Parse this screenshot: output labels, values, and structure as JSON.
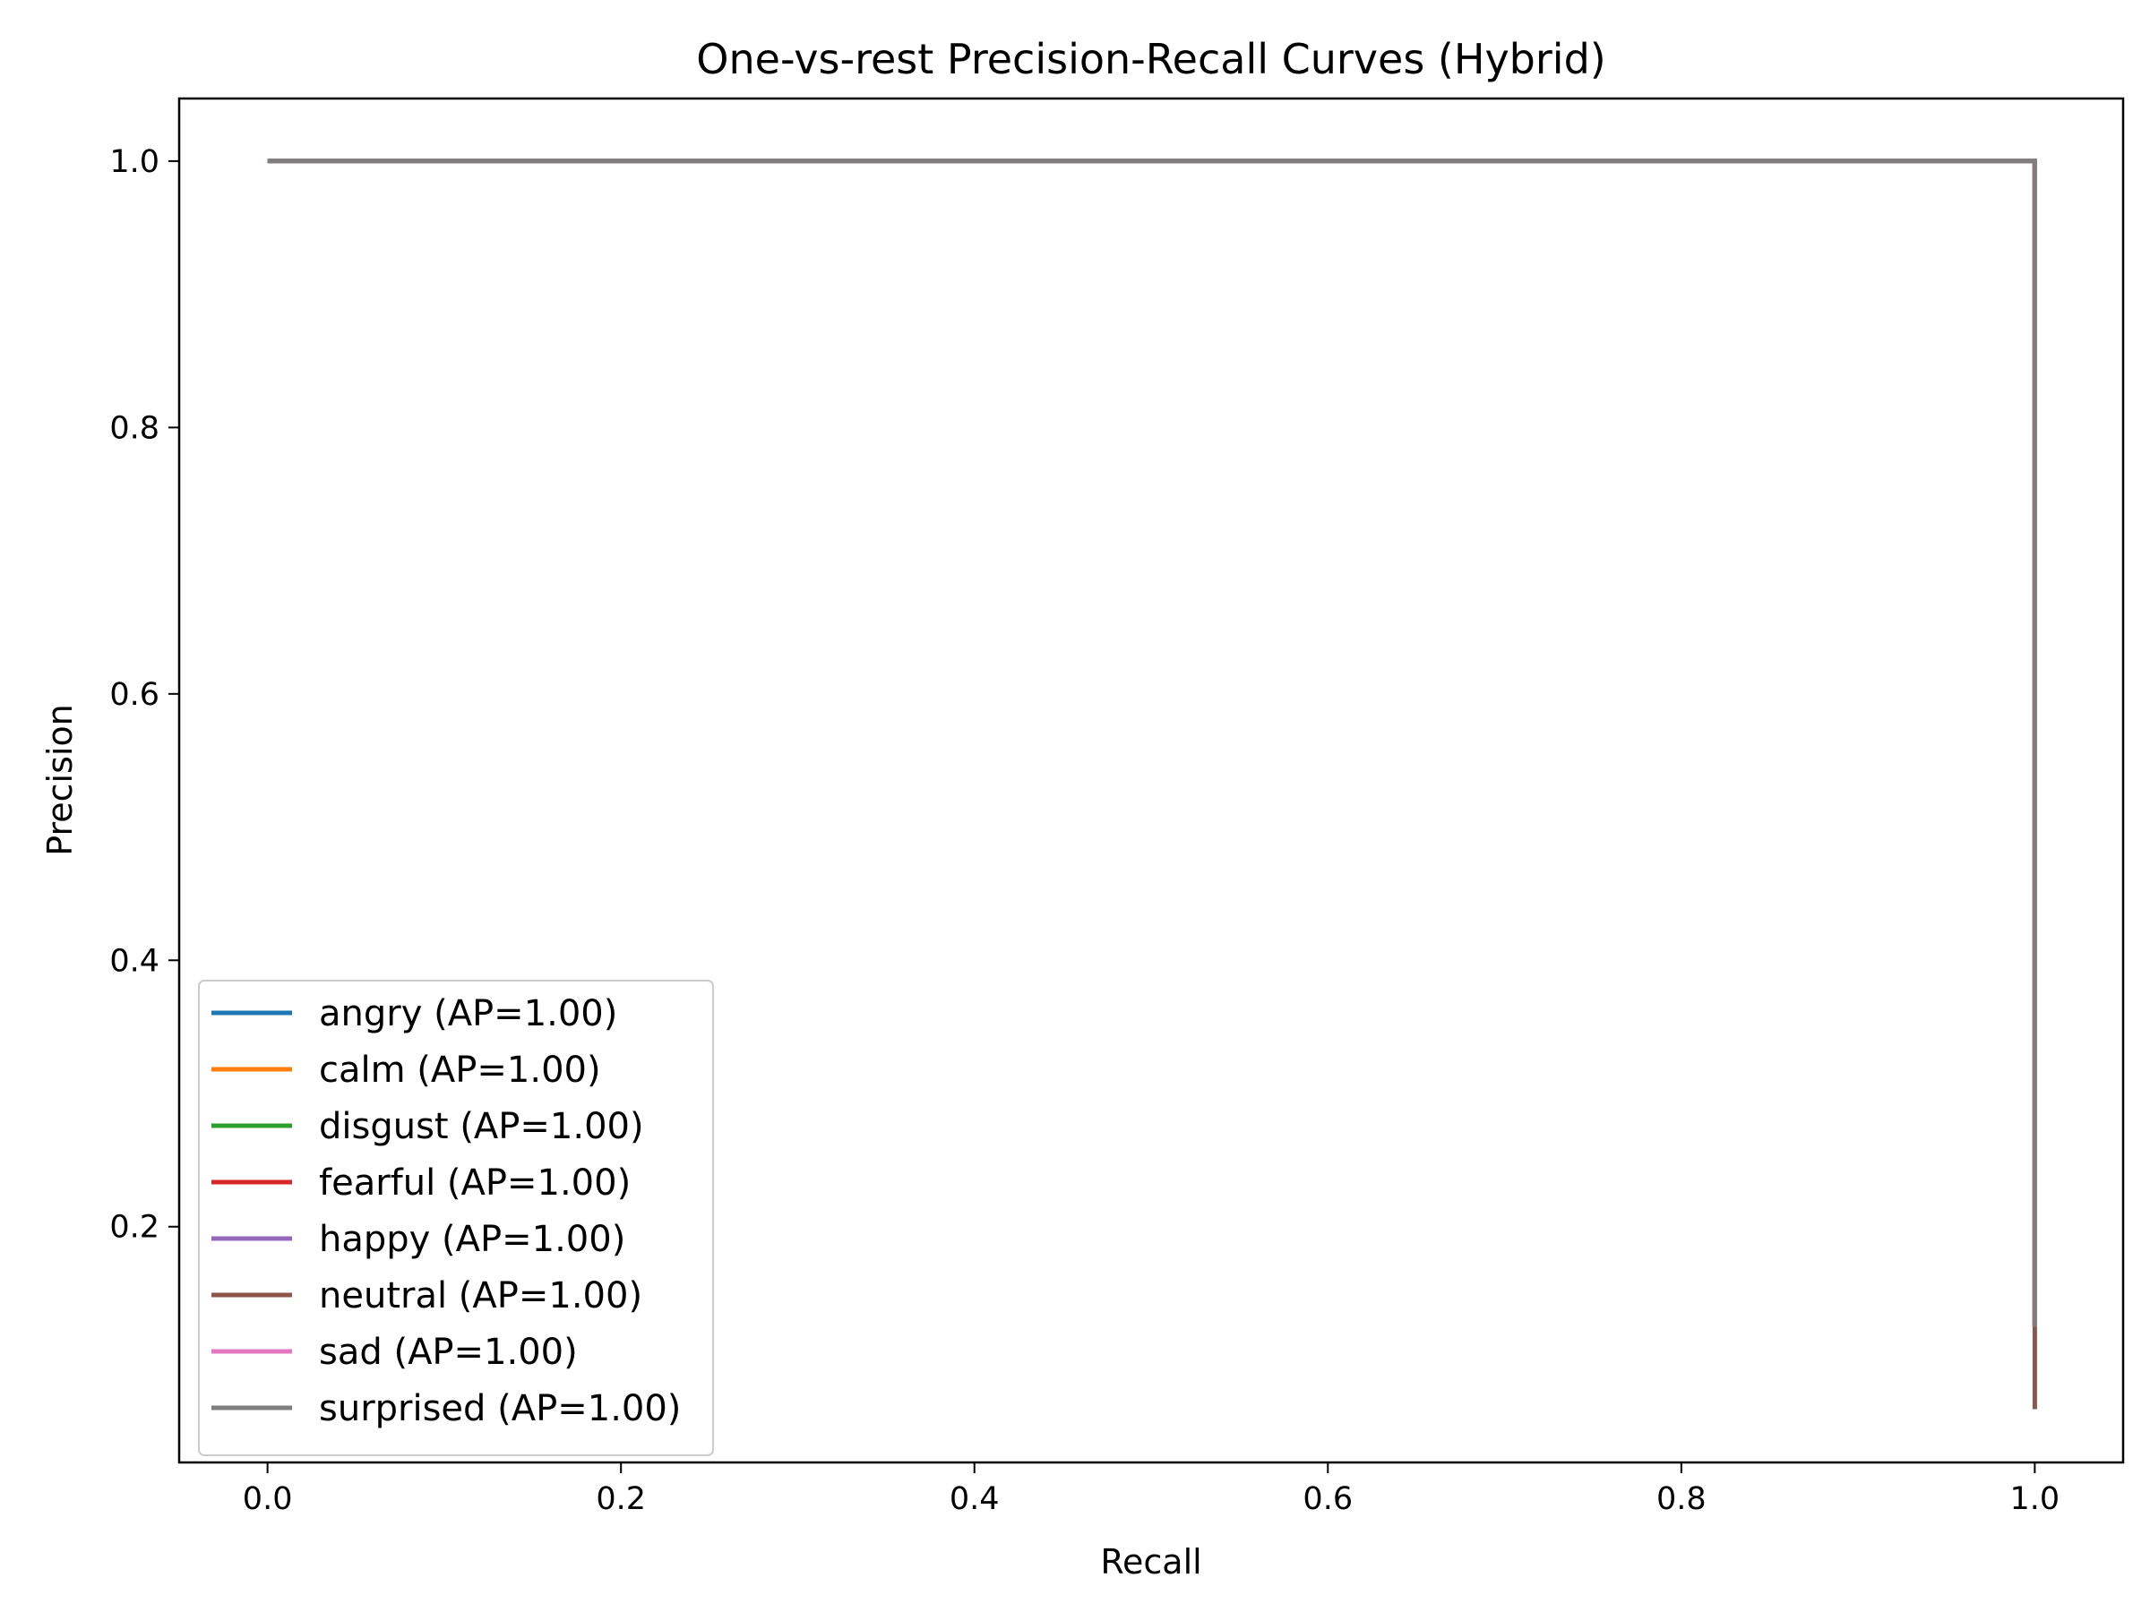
{
  "chart_data": {
    "type": "line",
    "title": "One-vs-rest Precision-Recall Curves (Hybrid)",
    "xlabel": "Recall",
    "ylabel": "Precision",
    "xlim": [
      -0.05,
      1.05
    ],
    "ylim": [
      0.023,
      1.047
    ],
    "xticks": [
      0.0,
      0.2,
      0.4,
      0.6,
      0.8,
      1.0
    ],
    "xtick_labels": [
      "0.0",
      "0.2",
      "0.4",
      "0.6",
      "0.8",
      "1.0"
    ],
    "yticks": [
      0.2,
      0.4,
      0.6,
      0.8,
      1.0
    ],
    "ytick_labels": [
      "0.2",
      "0.4",
      "0.6",
      "0.8",
      "1.0"
    ],
    "grid": false,
    "legend_position": "lower-left",
    "series": [
      {
        "name": "angry (AP=1.00)",
        "color": "#1f77b4",
        "x": [
          0.0,
          1.0,
          1.0
        ],
        "y": [
          1.0,
          1.0,
          0.125
        ]
      },
      {
        "name": "calm (AP=1.00)",
        "color": "#ff7f0e",
        "x": [
          0.0,
          1.0,
          1.0
        ],
        "y": [
          1.0,
          1.0,
          0.125
        ]
      },
      {
        "name": "disgust (AP=1.00)",
        "color": "#2ca02c",
        "x": [
          0.0,
          1.0,
          1.0
        ],
        "y": [
          1.0,
          1.0,
          0.125
        ]
      },
      {
        "name": "fearful (AP=1.00)",
        "color": "#d62728",
        "x": [
          0.0,
          1.0,
          1.0
        ],
        "y": [
          1.0,
          1.0,
          0.125
        ]
      },
      {
        "name": "happy (AP=1.00)",
        "color": "#9467bd",
        "x": [
          0.0,
          1.0,
          1.0
        ],
        "y": [
          1.0,
          1.0,
          0.125
        ]
      },
      {
        "name": "neutral (AP=1.00)",
        "color": "#8c564b",
        "x": [
          0.0,
          1.0,
          1.0
        ],
        "y": [
          1.0,
          1.0,
          0.063
        ]
      },
      {
        "name": "sad (AP=1.00)",
        "color": "#e377c2",
        "x": [
          0.0,
          1.0,
          1.0
        ],
        "y": [
          1.0,
          1.0,
          0.125
        ]
      },
      {
        "name": "surprised (AP=1.00)",
        "color": "#7f7f7f",
        "x": [
          0.0,
          1.0,
          1.0
        ],
        "y": [
          1.0,
          1.0,
          0.125
        ]
      }
    ]
  }
}
